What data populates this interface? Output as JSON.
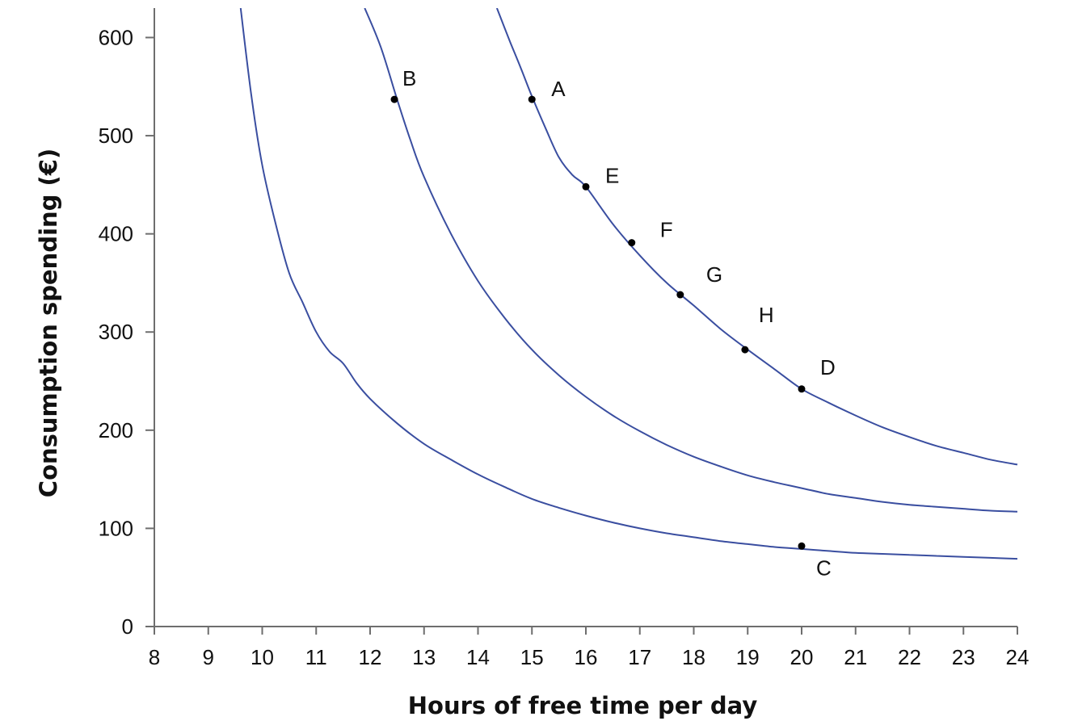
{
  "chart_data": {
    "type": "line",
    "title": "",
    "xlabel": "Hours of free time per day",
    "ylabel": "Consumption spending (€)",
    "xlim": [
      8,
      24
    ],
    "ylim": [
      0,
      630
    ],
    "xticks": [
      8,
      9,
      10,
      11,
      12,
      13,
      14,
      15,
      16,
      17,
      18,
      19,
      20,
      21,
      22,
      23,
      24
    ],
    "yticks": [
      0,
      100,
      200,
      300,
      400,
      500,
      600
    ],
    "grid": false,
    "legend": "none",
    "curve_color": "#3a4ea0",
    "series": [
      {
        "x": [
          9.6,
          9.8,
          10.0,
          10.25,
          10.5,
          10.75,
          11.0,
          11.25,
          11.5,
          11.75,
          12.0,
          12.5,
          13.0,
          13.5,
          14.0,
          14.5,
          15.0,
          15.5,
          16.0,
          16.5,
          17.0,
          17.5,
          18.0,
          18.5,
          19.0,
          19.5,
          20.0,
          20.5,
          21.0,
          21.5,
          22.0,
          22.5,
          23.0,
          23.5,
          24.0
        ],
        "y": [
          630,
          540,
          470,
          410,
          360,
          330,
          300,
          280,
          268,
          248,
          232,
          207,
          186,
          170,
          155,
          142,
          130,
          121,
          113,
          106,
          100,
          95,
          91,
          87,
          84,
          81,
          79,
          77,
          75,
          74,
          73,
          72,
          71,
          70,
          69
        ]
      },
      {
        "x": [
          11.9,
          12.2,
          12.5,
          12.75,
          13.0,
          13.5,
          14.0,
          14.5,
          15.0,
          15.5,
          16.0,
          16.5,
          17.0,
          17.5,
          18.0,
          18.5,
          19.0,
          19.5,
          20.0,
          20.5,
          21.0,
          21.5,
          22.0,
          22.5,
          23.0,
          23.5,
          24.0
        ],
        "y": [
          630,
          590,
          537,
          495,
          458,
          400,
          352,
          314,
          282,
          256,
          234,
          215,
          199,
          185,
          173,
          163,
          154,
          147,
          141,
          135,
          131,
          127,
          124,
          122,
          120,
          118,
          117
        ]
      },
      {
        "x": [
          14.35,
          14.6,
          14.8,
          15.0,
          15.25,
          15.5,
          15.75,
          16.0,
          16.5,
          17.0,
          17.5,
          18.0,
          18.5,
          19.0,
          19.5,
          20.0,
          20.5,
          21.0,
          21.5,
          22.0,
          22.5,
          23.0,
          23.5,
          24.0
        ],
        "y": [
          630,
          595,
          568,
          540,
          508,
          478,
          460,
          448,
          410,
          378,
          350,
          327,
          303,
          282,
          262,
          242,
          228,
          215,
          203,
          193,
          184,
          177,
          170,
          165
        ]
      }
    ],
    "points": [
      {
        "label": "A",
        "x": 15.0,
        "y": 537
      },
      {
        "label": "B",
        "x": 12.45,
        "y": 537
      },
      {
        "label": "C",
        "x": 20.0,
        "y": 82
      },
      {
        "label": "D",
        "x": 20.0,
        "y": 242
      },
      {
        "label": "E",
        "x": 16.0,
        "y": 448
      },
      {
        "label": "F",
        "x": 16.85,
        "y": 391
      },
      {
        "label": "G",
        "x": 17.75,
        "y": 338
      },
      {
        "label": "H",
        "x": 18.95,
        "y": 282
      }
    ]
  }
}
